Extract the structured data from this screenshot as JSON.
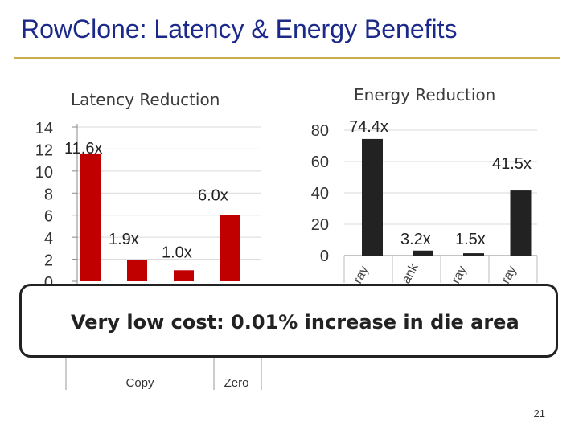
{
  "slide": {
    "title": "RowClone: Latency & Energy Benefits",
    "page_number": "21",
    "callout": "Very low cost: 0.01% increase in die area"
  },
  "colors": {
    "latency_bar": "#c00000",
    "energy_bar": "#222222",
    "title": "#1b2a8a",
    "rule": "#c9ad4b"
  },
  "chart_data": [
    {
      "type": "bar",
      "title": "Latency Reduction",
      "categories": [
        "Copy",
        "",
        "",
        "Zero"
      ],
      "values": [
        11.6,
        1.9,
        1.0,
        6.0
      ],
      "data_labels": [
        "11.6x",
        "1.9x",
        "1.0x",
        "6.0x"
      ],
      "y_ticks": [
        "14",
        "12",
        "10",
        "8",
        "6",
        "4",
        "2",
        "0"
      ],
      "ylim": [
        0,
        14
      ]
    },
    {
      "type": "bar",
      "title": "Energy Reduction",
      "categories": [
        "ray",
        "ank",
        "ray",
        "ray"
      ],
      "values": [
        74.4,
        3.2,
        1.5,
        41.5
      ],
      "data_labels": [
        "74.4x",
        "3.2x",
        "1.5x",
        "41.5x"
      ],
      "y_ticks": [
        "80",
        "60",
        "40",
        "20",
        "0"
      ],
      "ylim": [
        0,
        80
      ]
    }
  ]
}
